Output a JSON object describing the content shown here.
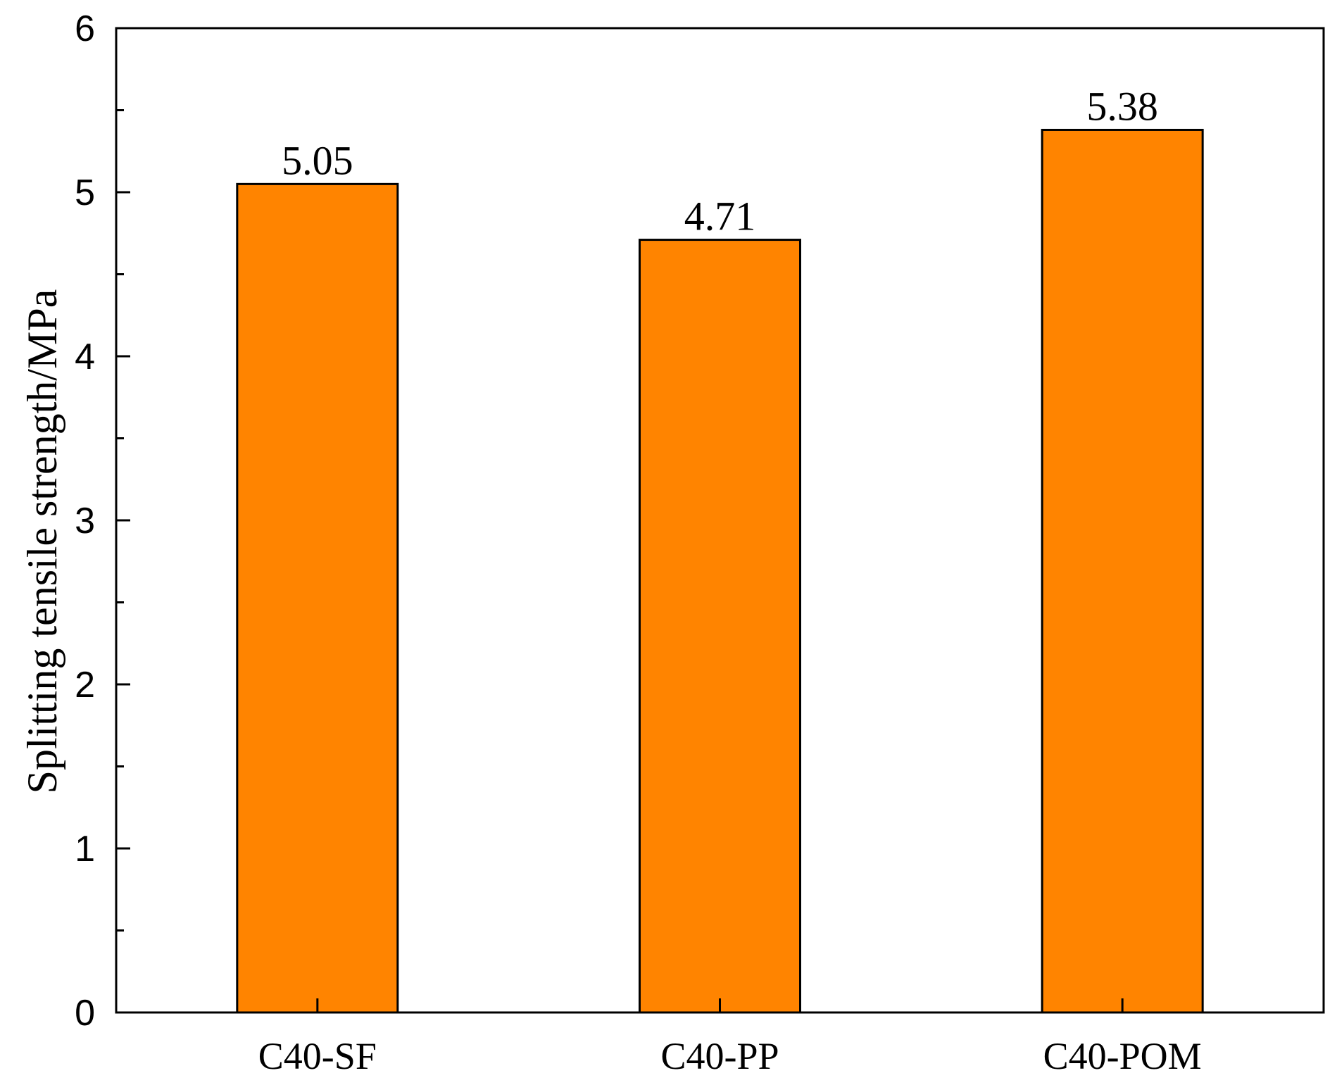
{
  "chart_data": {
    "type": "bar",
    "categories": [
      "C40-SF",
      "C40-PP",
      "C40-POM"
    ],
    "values": [
      5.05,
      4.71,
      5.38
    ],
    "value_labels": [
      "5.05",
      "4.71",
      "5.38"
    ],
    "ylabel": "Splitting tensile strength/MPa",
    "ylim": [
      0,
      6
    ],
    "y_major_ticks": [
      0,
      1,
      2,
      3,
      4,
      5,
      6
    ],
    "y_minor_ticks": [
      0.5,
      1.5,
      2.5,
      3.5,
      4.5,
      5.5
    ],
    "bar_color": "#FF8400",
    "bar_edge_color": "#000000",
    "grid": false,
    "legend": "none"
  }
}
